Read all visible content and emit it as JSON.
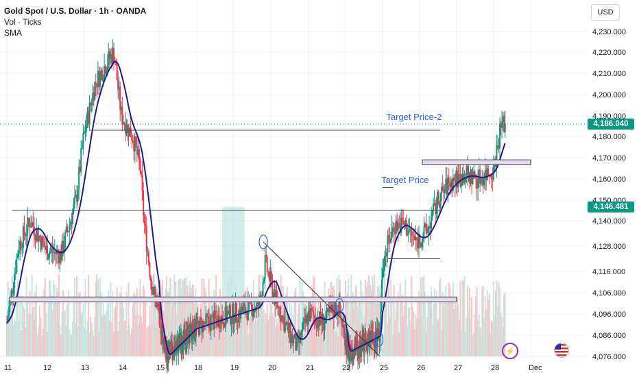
{
  "legend": {
    "title": "Gold Spot / U.S. Dollar · 1h · OANDA",
    "line2": "Vol · Ticks",
    "line3": "SMA"
  },
  "currency": "USD",
  "colors": {
    "up": "#089981",
    "down": "#f23645",
    "sma": "#1a1a8c",
    "volume_up": "#c8e6e1",
    "volume_down": "#f6c7ca",
    "grid": "#f0f3fa",
    "annotation": "#2962ff",
    "zone": "#e6dcf0",
    "highlight": "#b2dfdb"
  },
  "badges": {
    "current": "4,186.040",
    "sma": "4,146.481"
  },
  "annotations": {
    "target1": "Target Price",
    "target2": "Target Price-2"
  },
  "chart_data": {
    "type": "candlestick",
    "title": "Gold Spot / U.S. Dollar · 1h · OANDA",
    "x_ticks": [
      "11",
      "12",
      "13",
      "14",
      "15",
      "18",
      "19",
      "20",
      "21",
      "22",
      "25",
      "26",
      "27",
      "28",
      "Dec"
    ],
    "y_ticks": [
      "4,230.000",
      "4,220.000",
      "4,210.000",
      "4,200.000",
      "4,190.000",
      "4,180.000",
      "4,170.000",
      "4,160.000",
      "4,150.000",
      "4,140.000",
      "4,128.000",
      "4,116.000",
      "4,106.000",
      "4,096.000",
      "4,086.000",
      "4,076.000"
    ],
    "y_scale": "log",
    "close_path": [
      [
        11,
        4092
      ],
      [
        11.3,
        4128
      ],
      [
        11.6,
        4140
      ],
      [
        12,
        4126
      ],
      [
        12.4,
        4124
      ],
      [
        12.8,
        4150
      ],
      [
        13,
        4180
      ],
      [
        13.3,
        4205
      ],
      [
        13.6,
        4215
      ],
      [
        13.8,
        4220
      ],
      [
        14,
        4190
      ],
      [
        14.3,
        4180
      ],
      [
        14.5,
        4165
      ],
      [
        14.6,
        4140
      ],
      [
        14.8,
        4110
      ],
      [
        15,
        4096
      ],
      [
        15.3,
        4085
      ],
      [
        15.6,
        4076
      ],
      [
        19.7,
        4100
      ],
      [
        19.85,
        4120
      ],
      [
        20.1,
        4104
      ],
      [
        20.4,
        4090
      ],
      [
        20.7,
        4080
      ],
      [
        21,
        4096
      ],
      [
        21.4,
        4092
      ],
      [
        21.8,
        4100
      ],
      [
        22,
        4086
      ],
      [
        22.2,
        4078
      ],
      [
        24.8,
        4086
      ],
      [
        25,
        4120
      ],
      [
        25.3,
        4138
      ],
      [
        25.6,
        4138
      ],
      [
        25.9,
        4130
      ],
      [
        26.2,
        4135
      ],
      [
        26.5,
        4150
      ],
      [
        26.8,
        4158
      ],
      [
        27.2,
        4162
      ],
      [
        27.6,
        4160
      ],
      [
        28,
        4165
      ],
      [
        28.2,
        4186
      ],
      [
        28.3,
        4186.04
      ]
    ],
    "sma_last": 4146.481,
    "last_price": 4186.04,
    "levels": [
      {
        "value": 4183,
        "from": "13",
        "to": "26"
      },
      {
        "value": 4145,
        "from": "11",
        "to": "26"
      },
      {
        "value": 4168,
        "from": "26",
        "to": "28"
      },
      {
        "value": 4103,
        "from": "11",
        "to": "26"
      },
      {
        "value": 4156,
        "from": "25",
        "to": "25"
      },
      {
        "value": 4122,
        "from": "25",
        "to": "26"
      }
    ],
    "legend": [
      "Vol · Ticks",
      "SMA"
    ]
  }
}
